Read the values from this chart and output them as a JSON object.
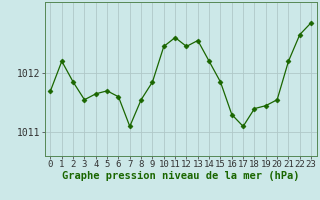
{
  "x": [
    0,
    1,
    2,
    3,
    4,
    5,
    6,
    7,
    8,
    9,
    10,
    11,
    12,
    13,
    14,
    15,
    16,
    17,
    18,
    19,
    20,
    21,
    22,
    23
  ],
  "y": [
    1011.7,
    1012.2,
    1011.85,
    1011.55,
    1011.65,
    1011.7,
    1011.6,
    1011.1,
    1011.55,
    1011.85,
    1012.45,
    1012.6,
    1012.45,
    1012.55,
    1012.2,
    1011.85,
    1011.3,
    1011.1,
    1011.4,
    1011.45,
    1011.55,
    1012.2,
    1012.65,
    1012.85
  ],
  "line_color": "#1a6600",
  "marker": "D",
  "marker_size": 2.5,
  "grid_color": "#b0c8c8",
  "ylim": [
    1010.6,
    1013.2
  ],
  "yticks": [
    1011,
    1012
  ],
  "xticks": [
    0,
    1,
    2,
    3,
    4,
    5,
    6,
    7,
    8,
    9,
    10,
    11,
    12,
    13,
    14,
    15,
    16,
    17,
    18,
    19,
    20,
    21,
    22,
    23
  ],
  "xlabel": "Graphe pression niveau de la mer (hPa)",
  "xlabel_color": "#1a6600",
  "xlabel_fontsize": 7.5,
  "tick_fontsize": 6.5,
  "ytick_fontsize": 7.0,
  "plot_bg": "#cce8e8",
  "outer_bg": "#cce8e8",
  "spine_color": "#558855"
}
